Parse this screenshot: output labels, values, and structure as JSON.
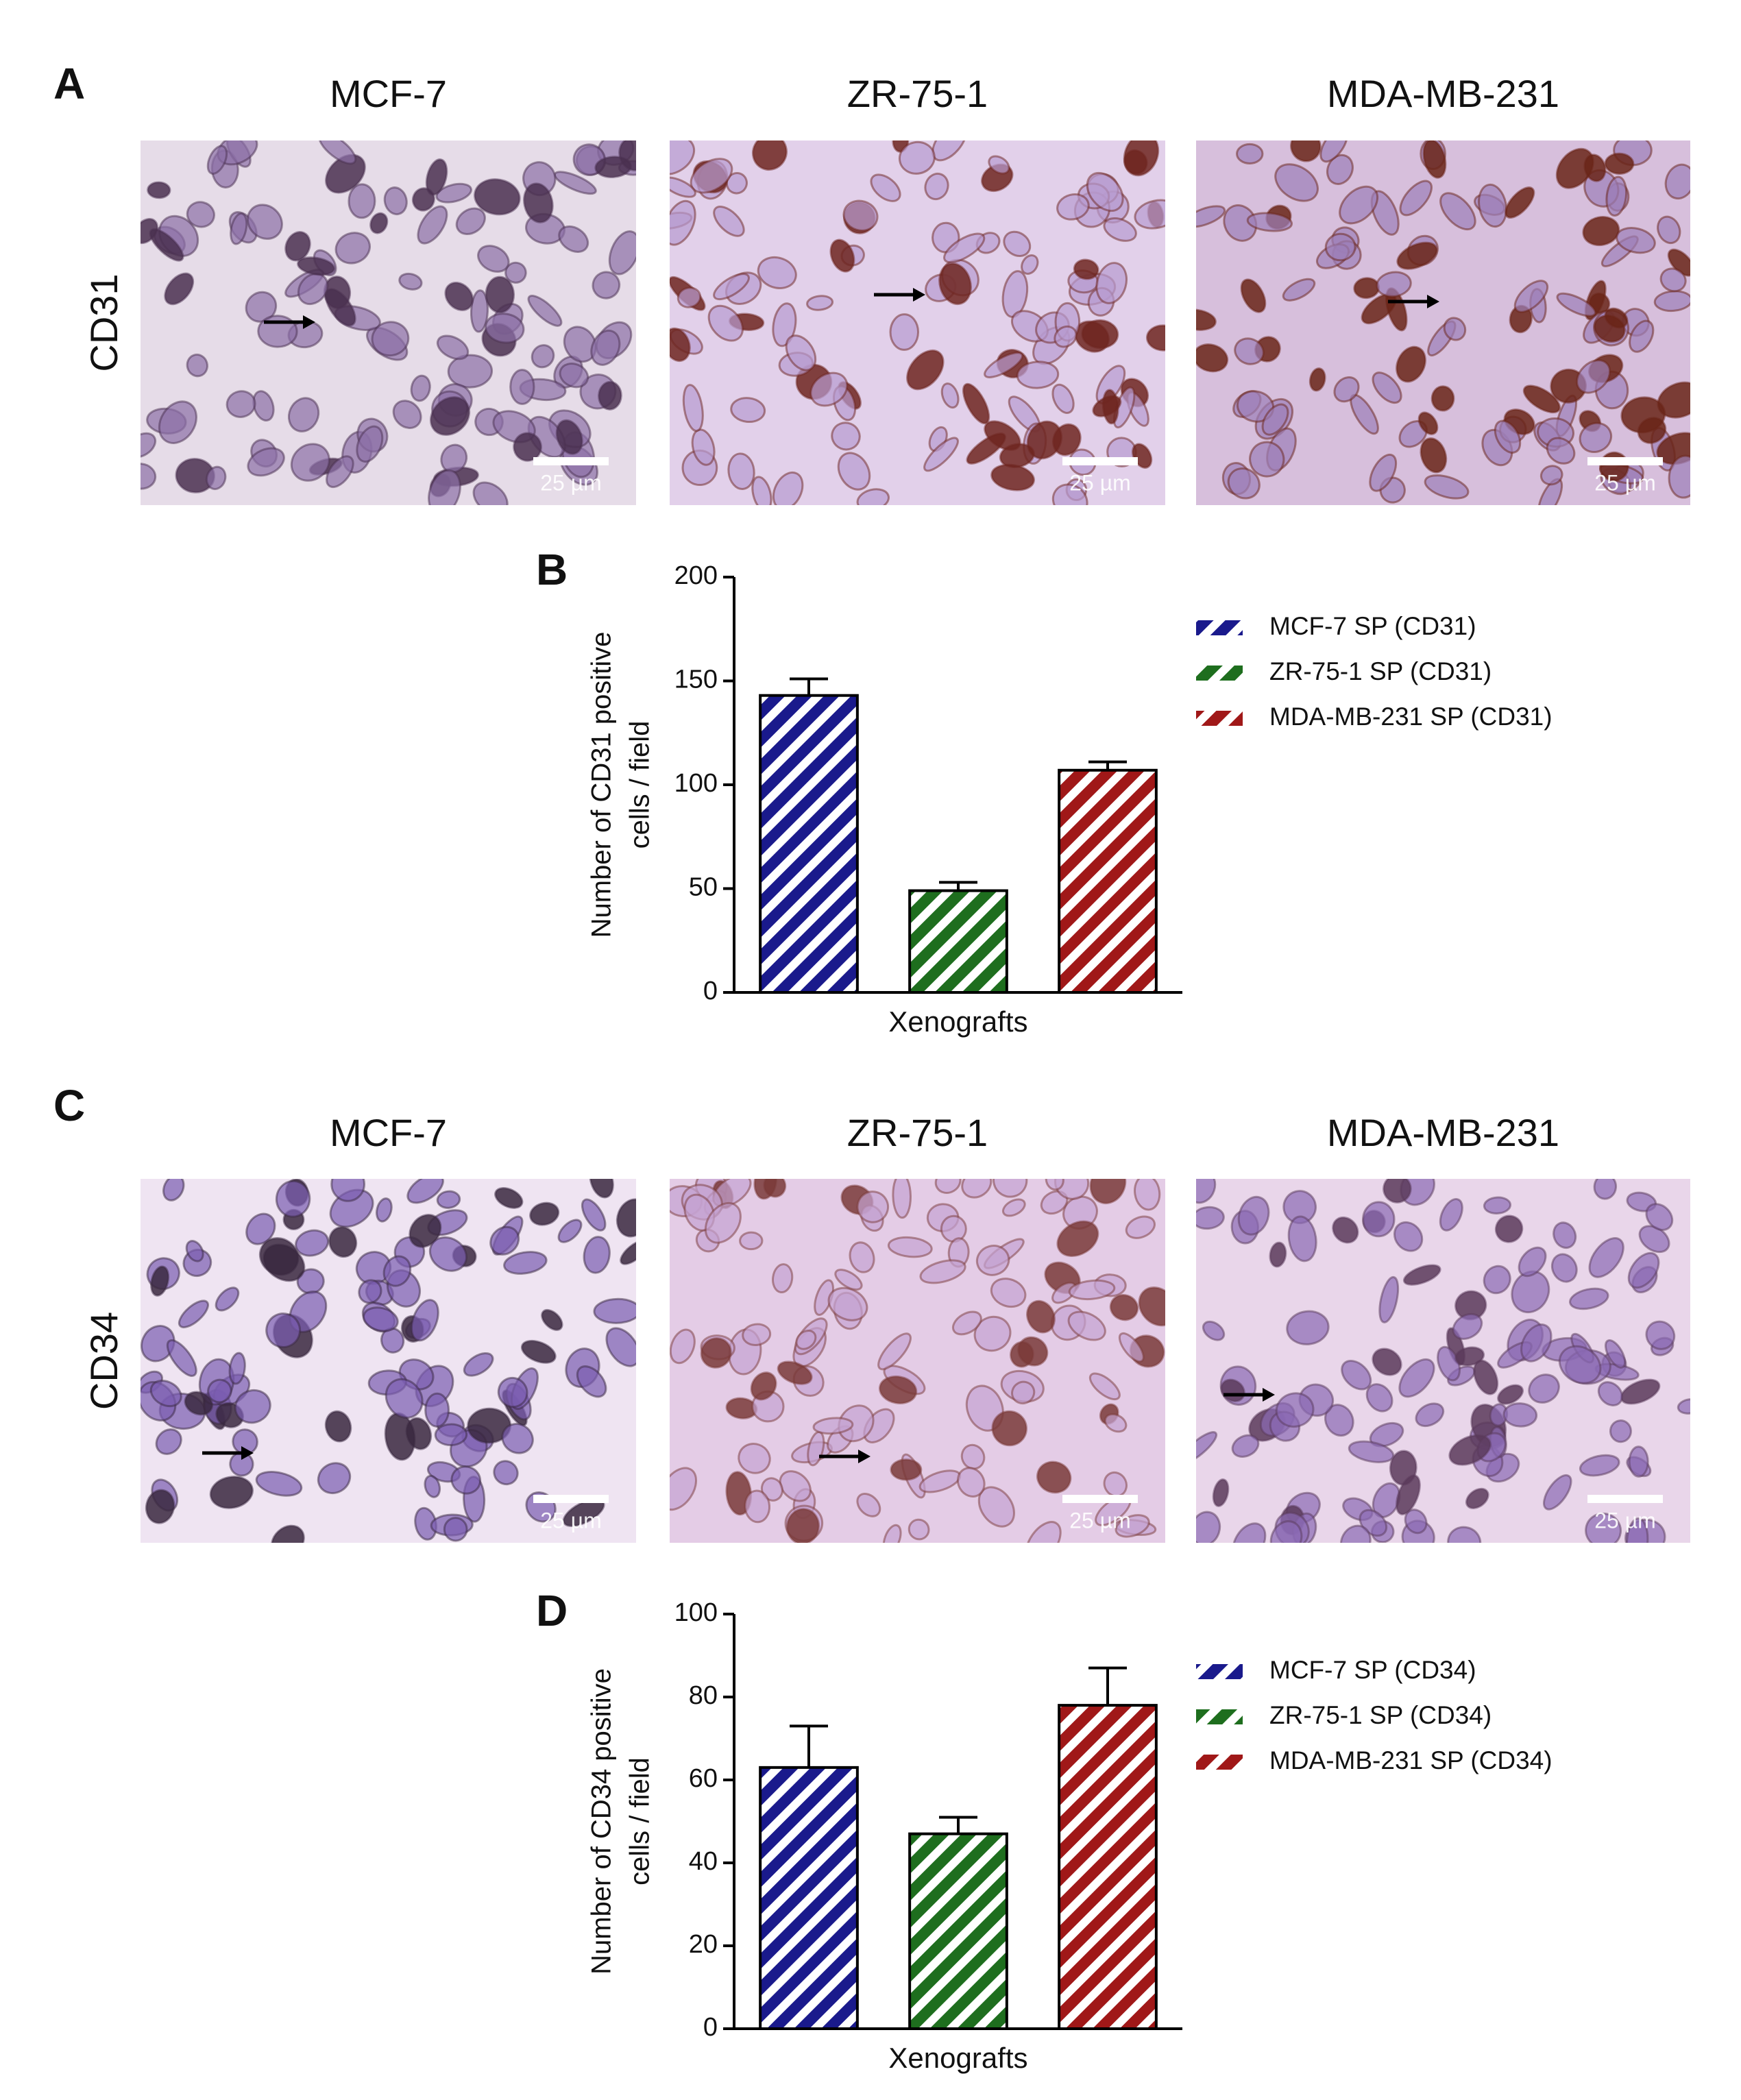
{
  "panels": {
    "letters": [
      "A",
      "B",
      "C",
      "D"
    ],
    "columns": [
      "MCF-7",
      "ZR-75-1",
      "MDA-MB-231"
    ],
    "rows": [
      "CD31",
      "CD34"
    ],
    "scale_bar": "25 µm"
  },
  "chart_data": [
    {
      "type": "bar",
      "xlabel": "Xenografts",
      "ylabel": [
        "Number of CD31 positive",
        "cells / field"
      ],
      "ylim": [
        0,
        200
      ],
      "yticks": [
        0,
        50,
        100,
        150,
        200
      ],
      "legend": "upper right",
      "series": [
        {
          "name": "MCF-7 SP (CD31)",
          "color": "#1a1a8c",
          "values": [
            143
          ],
          "errors": [
            8
          ]
        },
        {
          "name": "ZR-75-1 SP (CD31)",
          "color": "#1e6e1e",
          "values": [
            49
          ],
          "errors": [
            4
          ]
        },
        {
          "name": "MDA-MB-231 SP (CD31)",
          "color": "#a01818",
          "values": [
            107
          ],
          "errors": [
            4
          ]
        }
      ]
    },
    {
      "type": "bar",
      "xlabel": "Xenografts",
      "ylabel": [
        "Number of CD34 positive",
        "cells / field"
      ],
      "ylim": [
        0,
        100
      ],
      "yticks": [
        0,
        20,
        40,
        60,
        80,
        100
      ],
      "legend": "upper right",
      "series": [
        {
          "name": "MCF-7 SP (CD34)",
          "color": "#1a1a8c",
          "values": [
            63
          ],
          "errors": [
            10
          ]
        },
        {
          "name": "ZR-75-1 SP (CD34)",
          "color": "#1e6e1e",
          "values": [
            47
          ],
          "errors": [
            4
          ]
        },
        {
          "name": "MDA-MB-231 SP (CD34)",
          "color": "#a01818",
          "values": [
            78
          ],
          "errors": [
            9
          ]
        }
      ]
    }
  ]
}
